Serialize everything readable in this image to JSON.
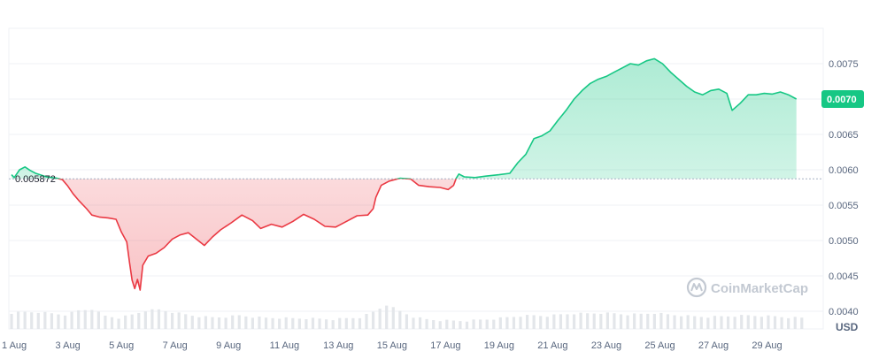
{
  "chart_data": {
    "type": "area",
    "x_unit": "day of August",
    "x_tick_labels": [
      "1 Aug",
      "3 Aug",
      "5 Aug",
      "7 Aug",
      "9 Aug",
      "11 Aug",
      "13 Aug",
      "15 Aug",
      "17 Aug",
      "19 Aug",
      "21 Aug",
      "23 Aug",
      "25 Aug",
      "27 Aug",
      "29 Aug"
    ],
    "x_tick_days": [
      1,
      3,
      5,
      7,
      9,
      11,
      13,
      15,
      17,
      19,
      21,
      23,
      25,
      27,
      29
    ],
    "y_tick_labels": [
      "0.0040",
      "0.0045",
      "0.0050",
      "0.0055",
      "0.0060",
      "0.0065",
      "0.0070",
      "0.0075"
    ],
    "y_tick_values": [
      0.004,
      0.0045,
      0.005,
      0.0055,
      0.006,
      0.0065,
      0.007,
      0.0075
    ],
    "xlim": [
      0.9,
      31.3
    ],
    "ylim": [
      0.00375,
      0.008
    ],
    "grid": true,
    "unit_label": "USD",
    "reference_value": 0.005872,
    "reference_label": "0.005872",
    "current_value": 0.007,
    "current_label": "0.0070",
    "colors": {
      "up": "#16c784",
      "down": "#ea3943",
      "grid": "#eff2f5",
      "volume": "#e3e6ea",
      "badge": "#16c784"
    },
    "series": [
      {
        "values": [
          [
            1.0,
            0.00593
          ],
          [
            1.1,
            0.00589
          ],
          [
            1.3,
            0.006
          ],
          [
            1.5,
            0.00604
          ],
          [
            1.7,
            0.00599
          ],
          [
            1.9,
            0.00595
          ],
          [
            2.3,
            0.0059
          ],
          [
            2.7,
            0.00588
          ],
          [
            2.9,
            0.00586
          ],
          [
            3.1,
            0.00577
          ],
          [
            3.3,
            0.00566
          ],
          [
            3.5,
            0.00557
          ],
          [
            3.8,
            0.00545
          ],
          [
            4.0,
            0.00536
          ],
          [
            4.3,
            0.00533
          ],
          [
            4.6,
            0.00532
          ],
          [
            4.9,
            0.0053
          ],
          [
            5.1,
            0.00512
          ],
          [
            5.3,
            0.00498
          ],
          [
            5.4,
            0.0047
          ],
          [
            5.5,
            0.00444
          ],
          [
            5.6,
            0.00432
          ],
          [
            5.7,
            0.00445
          ],
          [
            5.8,
            0.0043
          ],
          [
            5.9,
            0.00465
          ],
          [
            6.1,
            0.00478
          ],
          [
            6.4,
            0.00482
          ],
          [
            6.7,
            0.0049
          ],
          [
            7.0,
            0.00502
          ],
          [
            7.3,
            0.00508
          ],
          [
            7.6,
            0.00511
          ],
          [
            7.9,
            0.00502
          ],
          [
            8.2,
            0.00493
          ],
          [
            8.5,
            0.00505
          ],
          [
            8.8,
            0.00515
          ],
          [
            9.2,
            0.00525
          ],
          [
            9.6,
            0.00536
          ],
          [
            10.0,
            0.00528
          ],
          [
            10.3,
            0.00517
          ],
          [
            10.7,
            0.00523
          ],
          [
            11.1,
            0.00519
          ],
          [
            11.5,
            0.00527
          ],
          [
            11.9,
            0.00537
          ],
          [
            12.3,
            0.0053
          ],
          [
            12.7,
            0.0052
          ],
          [
            13.1,
            0.00519
          ],
          [
            13.5,
            0.00527
          ],
          [
            13.9,
            0.00535
          ],
          [
            14.3,
            0.00536
          ],
          [
            14.5,
            0.00545
          ],
          [
            14.6,
            0.00561
          ],
          [
            14.8,
            0.00578
          ],
          [
            15.1,
            0.00584
          ],
          [
            15.5,
            0.00588
          ],
          [
            15.9,
            0.00587
          ],
          [
            16.2,
            0.00578
          ],
          [
            16.6,
            0.00576
          ],
          [
            17.0,
            0.00575
          ],
          [
            17.3,
            0.00572
          ],
          [
            17.5,
            0.00578
          ],
          [
            17.6,
            0.00588
          ],
          [
            17.7,
            0.00594
          ],
          [
            17.9,
            0.0059
          ],
          [
            18.3,
            0.00589
          ],
          [
            18.7,
            0.00591
          ],
          [
            19.2,
            0.00593
          ],
          [
            19.6,
            0.00595
          ],
          [
            19.9,
            0.0061
          ],
          [
            20.2,
            0.00622
          ],
          [
            20.5,
            0.00644
          ],
          [
            20.8,
            0.00648
          ],
          [
            21.1,
            0.00655
          ],
          [
            21.4,
            0.0067
          ],
          [
            21.7,
            0.00684
          ],
          [
            22.0,
            0.007
          ],
          [
            22.3,
            0.00712
          ],
          [
            22.6,
            0.00722
          ],
          [
            22.9,
            0.00728
          ],
          [
            23.2,
            0.00732
          ],
          [
            23.5,
            0.00738
          ],
          [
            23.8,
            0.00744
          ],
          [
            24.1,
            0.0075
          ],
          [
            24.4,
            0.00748
          ],
          [
            24.7,
            0.00754
          ],
          [
            25.0,
            0.00757
          ],
          [
            25.3,
            0.0075
          ],
          [
            25.6,
            0.00738
          ],
          [
            25.9,
            0.00728
          ],
          [
            26.2,
            0.00718
          ],
          [
            26.5,
            0.0071
          ],
          [
            26.8,
            0.00706
          ],
          [
            27.1,
            0.00712
          ],
          [
            27.4,
            0.00714
          ],
          [
            27.7,
            0.00708
          ],
          [
            27.9,
            0.00684
          ],
          [
            28.2,
            0.00694
          ],
          [
            28.5,
            0.00706
          ],
          [
            28.8,
            0.00706
          ],
          [
            29.1,
            0.00708
          ],
          [
            29.4,
            0.00707
          ],
          [
            29.7,
            0.0071
          ],
          [
            30.0,
            0.00706
          ],
          [
            30.3,
            0.007
          ]
        ]
      }
    ],
    "volume_profile": [
      [
        1.0,
        0.62
      ],
      [
        1.5,
        0.66
      ],
      [
        2.0,
        0.66
      ],
      [
        2.5,
        0.6
      ],
      [
        3.0,
        0.55
      ],
      [
        3.5,
        0.72
      ],
      [
        4.0,
        0.78
      ],
      [
        4.5,
        0.5
      ],
      [
        5.0,
        0.42
      ],
      [
        5.5,
        0.55
      ],
      [
        6.0,
        0.72
      ],
      [
        6.5,
        0.76
      ],
      [
        7.0,
        0.66
      ],
      [
        7.5,
        0.56
      ],
      [
        8.0,
        0.48
      ],
      [
        8.5,
        0.44
      ],
      [
        9.0,
        0.46
      ],
      [
        9.5,
        0.52
      ],
      [
        10.0,
        0.46
      ],
      [
        10.5,
        0.42
      ],
      [
        11.0,
        0.42
      ],
      [
        11.5,
        0.4
      ],
      [
        12.0,
        0.4
      ],
      [
        12.5,
        0.38
      ],
      [
        13.0,
        0.36
      ],
      [
        13.5,
        0.4
      ],
      [
        14.0,
        0.44
      ],
      [
        14.5,
        0.66
      ],
      [
        15.0,
        0.96
      ],
      [
        15.5,
        0.7
      ],
      [
        16.0,
        0.46
      ],
      [
        16.5,
        0.36
      ],
      [
        17.0,
        0.32
      ],
      [
        17.5,
        0.3
      ],
      [
        18.0,
        0.3
      ],
      [
        18.5,
        0.34
      ],
      [
        19.0,
        0.38
      ],
      [
        19.5,
        0.44
      ],
      [
        20.0,
        0.5
      ],
      [
        20.5,
        0.52
      ],
      [
        21.0,
        0.5
      ],
      [
        21.5,
        0.56
      ],
      [
        22.0,
        0.6
      ],
      [
        22.5,
        0.6
      ],
      [
        23.0,
        0.62
      ],
      [
        23.5,
        0.6
      ],
      [
        24.0,
        0.56
      ],
      [
        24.5,
        0.58
      ],
      [
        25.0,
        0.62
      ],
      [
        25.5,
        0.56
      ],
      [
        26.0,
        0.52
      ],
      [
        26.5,
        0.48
      ],
      [
        27.0,
        0.46
      ],
      [
        27.5,
        0.48
      ],
      [
        28.0,
        0.5
      ],
      [
        28.5,
        0.52
      ],
      [
        29.0,
        0.5
      ],
      [
        29.5,
        0.48
      ],
      [
        30.0,
        0.44
      ],
      [
        30.5,
        0.42
      ]
    ],
    "watermark": "CoinMarketCap"
  }
}
